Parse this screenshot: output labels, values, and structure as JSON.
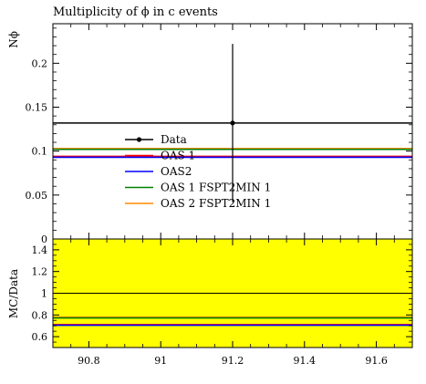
{
  "chart_data": {
    "type": "line",
    "title": "Multiplicity of ϕ in c events",
    "main_panel": {
      "ylabel": "Nϕ",
      "ylim": [
        0,
        0.245
      ],
      "yticks": [
        0,
        0.05,
        0.1,
        0.15,
        0.2
      ],
      "ytick_labels": [
        "0",
        "0.05",
        "0.1",
        "0.15",
        "0.2"
      ],
      "series": [
        {
          "name": "Data",
          "color": "#000000",
          "x": 91.2,
          "y": 0.132,
          "xerr": [
            90.7,
            91.7
          ],
          "yerr": [
            0.042,
            0.222
          ],
          "marker": "point"
        },
        {
          "name": "OAS 1",
          "color": "#ff0000",
          "y": 0.094
        },
        {
          "name": "OAS2",
          "color": "#0000ff",
          "y": 0.093
        },
        {
          "name": "OAS 1 FSPT2MIN 1",
          "color": "#008000",
          "y": 0.102
        },
        {
          "name": "OAS 2 FSPT2MIN 1",
          "color": "#ff8c00",
          "y": 0.103
        }
      ]
    },
    "ratio_panel": {
      "ylabel": "MC/Data",
      "ylim": [
        0.5,
        1.5
      ],
      "yticks": [
        0.6,
        0.8,
        1.0,
        1.2,
        1.4
      ],
      "ytick_labels": [
        "0.6",
        "0.8",
        "1",
        "1.2",
        "1.4"
      ],
      "band": {
        "color": "#ffff00",
        "low": 0.5,
        "high": 1.5
      },
      "lines": [
        {
          "name": "Data",
          "color": "#000000",
          "y": 1.0
        },
        {
          "name": "OAS 1",
          "color": "#ff0000",
          "y": 0.711
        },
        {
          "name": "OAS2",
          "color": "#0000ff",
          "y": 0.705
        },
        {
          "name": "OAS 1 FSPT2MIN 1",
          "color": "#008000",
          "y": 0.773
        },
        {
          "name": "OAS 2 FSPT2MIN 1",
          "color": "#ff8c00",
          "y": 0.78
        }
      ]
    },
    "xlim": [
      90.7,
      91.7
    ],
    "xticks": [
      90.8,
      91,
      91.2,
      91.4,
      91.6
    ],
    "xtick_labels": [
      "90.8",
      "91",
      "91.2",
      "91.4",
      "91.6"
    ],
    "legend": {
      "placement": "center-left",
      "entries": [
        "Data",
        "OAS 1",
        "OAS2",
        "OAS 1 FSPT2MIN 1",
        "OAS 2 FSPT2MIN 1"
      ]
    }
  }
}
